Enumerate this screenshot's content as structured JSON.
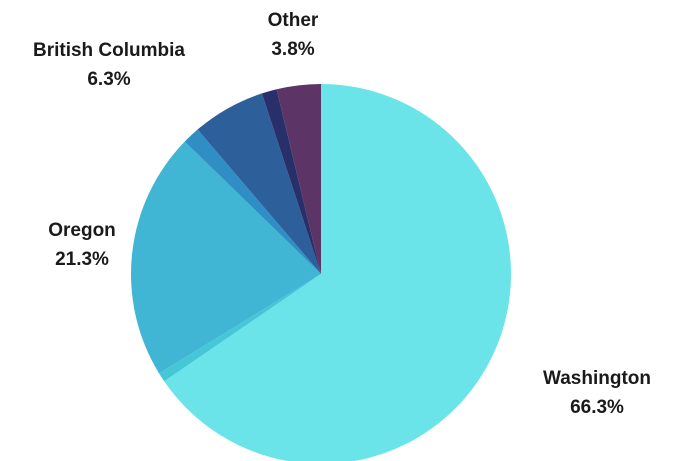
{
  "chart_data": {
    "type": "pie",
    "slices": [
      {
        "name": "Washington",
        "pct_label": "66.3%",
        "value": 66.3,
        "color": "#6ae4e8"
      },
      {
        "name": "",
        "pct_label": "",
        "value": 0.8,
        "color": "#45c7d7"
      },
      {
        "name": "Oregon",
        "pct_label": "21.3%",
        "value": 21.3,
        "color": "#40b5d4"
      },
      {
        "name": "",
        "pct_label": "",
        "value": 1.5,
        "color": "#2f8ec4"
      },
      {
        "name": "British Columbia",
        "pct_label": "6.3%",
        "value": 6.3,
        "color": "#2d5f9a"
      },
      {
        "name": "",
        "pct_label": "",
        "value": 1.3,
        "color": "#27306a"
      },
      {
        "name": "Other",
        "pct_label": "3.8%",
        "value": 3.8,
        "color": "#5c3566"
      }
    ],
    "legend": "none"
  }
}
